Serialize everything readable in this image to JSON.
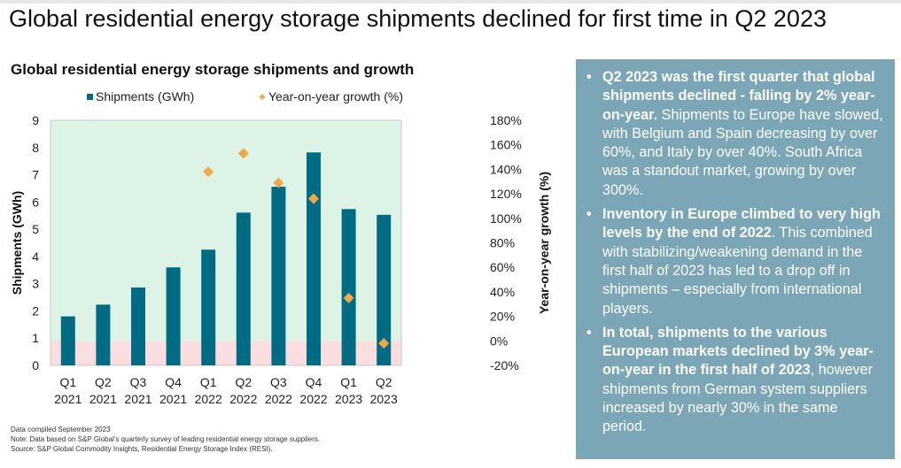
{
  "header": {
    "title": "Global residential energy storage shipments declined for first time in Q2 2023"
  },
  "chart_data": {
    "type": "bar",
    "title": "Global residential energy storage shipments and growth",
    "categories": [
      "Q1 2021",
      "Q2 2021",
      "Q3 2021",
      "Q4 2021",
      "Q1 2022",
      "Q2 2022",
      "Q3 2022",
      "Q4 2022",
      "Q1 2023",
      "Q2 2023"
    ],
    "category_lines": [
      [
        "Q1",
        "2021"
      ],
      [
        "Q2",
        "2021"
      ],
      [
        "Q3",
        "2021"
      ],
      [
        "Q4",
        "2021"
      ],
      [
        "Q1",
        "2022"
      ],
      [
        "Q2",
        "2022"
      ],
      [
        "Q3",
        "2022"
      ],
      [
        "Q4",
        "2022"
      ],
      [
        "Q1",
        "2023"
      ],
      [
        "Q2",
        "2023"
      ]
    ],
    "series": [
      {
        "name": "Shipments (GWh)",
        "type": "bar",
        "axis": "left",
        "color": "#006b82",
        "values": [
          1.8,
          2.23,
          2.86,
          3.6,
          4.25,
          5.61,
          6.56,
          7.82,
          5.74,
          5.53
        ]
      },
      {
        "name": "Year-on-year growth (%)",
        "type": "scatter",
        "marker": "diamond",
        "axis": "right",
        "color": "#f0a848",
        "values": [
          null,
          null,
          null,
          null,
          138,
          153,
          129,
          116,
          35,
          -2
        ]
      }
    ],
    "ylabel": "Shipments (GWh)",
    "ylim": [
      0,
      9
    ],
    "yticks": [
      "0",
      "1",
      "2",
      "3",
      "4",
      "5",
      "6",
      "7",
      "8",
      "9"
    ],
    "y2label": "Year-on-year growth (%)",
    "y2lim": [
      -20,
      180
    ],
    "y2ticks": [
      "-20%",
      "0%",
      "20%",
      "40%",
      "60%",
      "80%",
      "100%",
      "120%",
      "140%",
      "160%",
      "180%"
    ],
    "background_bands": [
      {
        "range_y2": [
          -20,
          0
        ],
        "color": "#fbdfe0"
      },
      {
        "range_y2": [
          0,
          180
        ],
        "color": "#dcf3e6"
      }
    ],
    "legend_position": "top",
    "grid": false
  },
  "notes": [
    "Data compiled September 2023",
    "Note: Data based on S&P Global's quarterly survey of leading residential energy storage suppliers.",
    "Source: S&P Global Commodity Insights, Residential Energy Storage Index (RESI)."
  ],
  "panel": {
    "bullets": [
      {
        "bold": "Q2 2023 was the first quarter that global shipments declined - falling by 2% year-on-year.",
        "text": " Shipments to Europe have slowed, with Belgium and Spain decreasing by over 60%, and Italy by over 40%. South Africa was a standout market, growing by over 300%."
      },
      {
        "bold": "Inventory in Europe climbed to very high levels by the end of 2022",
        "text": ". This combined with stabilizing/weakening demand in the first half of 2023 has led to a drop off in shipments – especially from international players."
      },
      {
        "bold": "In total, shipments to the various European markets declined by 3% year-on-year in the first half of 2023",
        "text": ", however shipments from German system suppliers increased by nearly 30% in the same period."
      }
    ]
  }
}
